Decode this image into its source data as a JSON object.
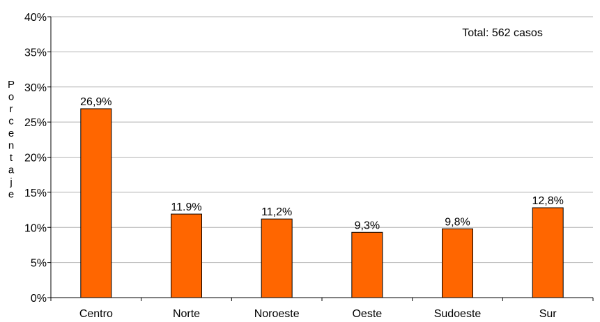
{
  "chart_data": {
    "type": "bar",
    "categories": [
      "Centro",
      "Norte",
      "Noroeste",
      "Oeste",
      "Sudoeste",
      "Sur"
    ],
    "values": [
      26.9,
      11.9,
      11.2,
      9.3,
      9.8,
      12.8
    ],
    "data_labels": [
      "26,9%",
      "11.9%",
      "11,2%",
      "9,3%",
      "9,8%",
      "12,8%"
    ],
    "ylabel": "Porcentaje",
    "ylim": [
      0,
      40
    ],
    "yticks": [
      0,
      5,
      10,
      15,
      20,
      25,
      30,
      35,
      40
    ],
    "ytick_labels": [
      "0%",
      "5%",
      "10%",
      "15%",
      "20%",
      "25%",
      "30%",
      "35%",
      "40%"
    ],
    "annotation": "Total: 562 casos",
    "grid": true,
    "colors": {
      "bar": "#ff6600",
      "bar_stroke": "#000000",
      "grid": "#b3b3b3",
      "axis": "#000000"
    }
  }
}
